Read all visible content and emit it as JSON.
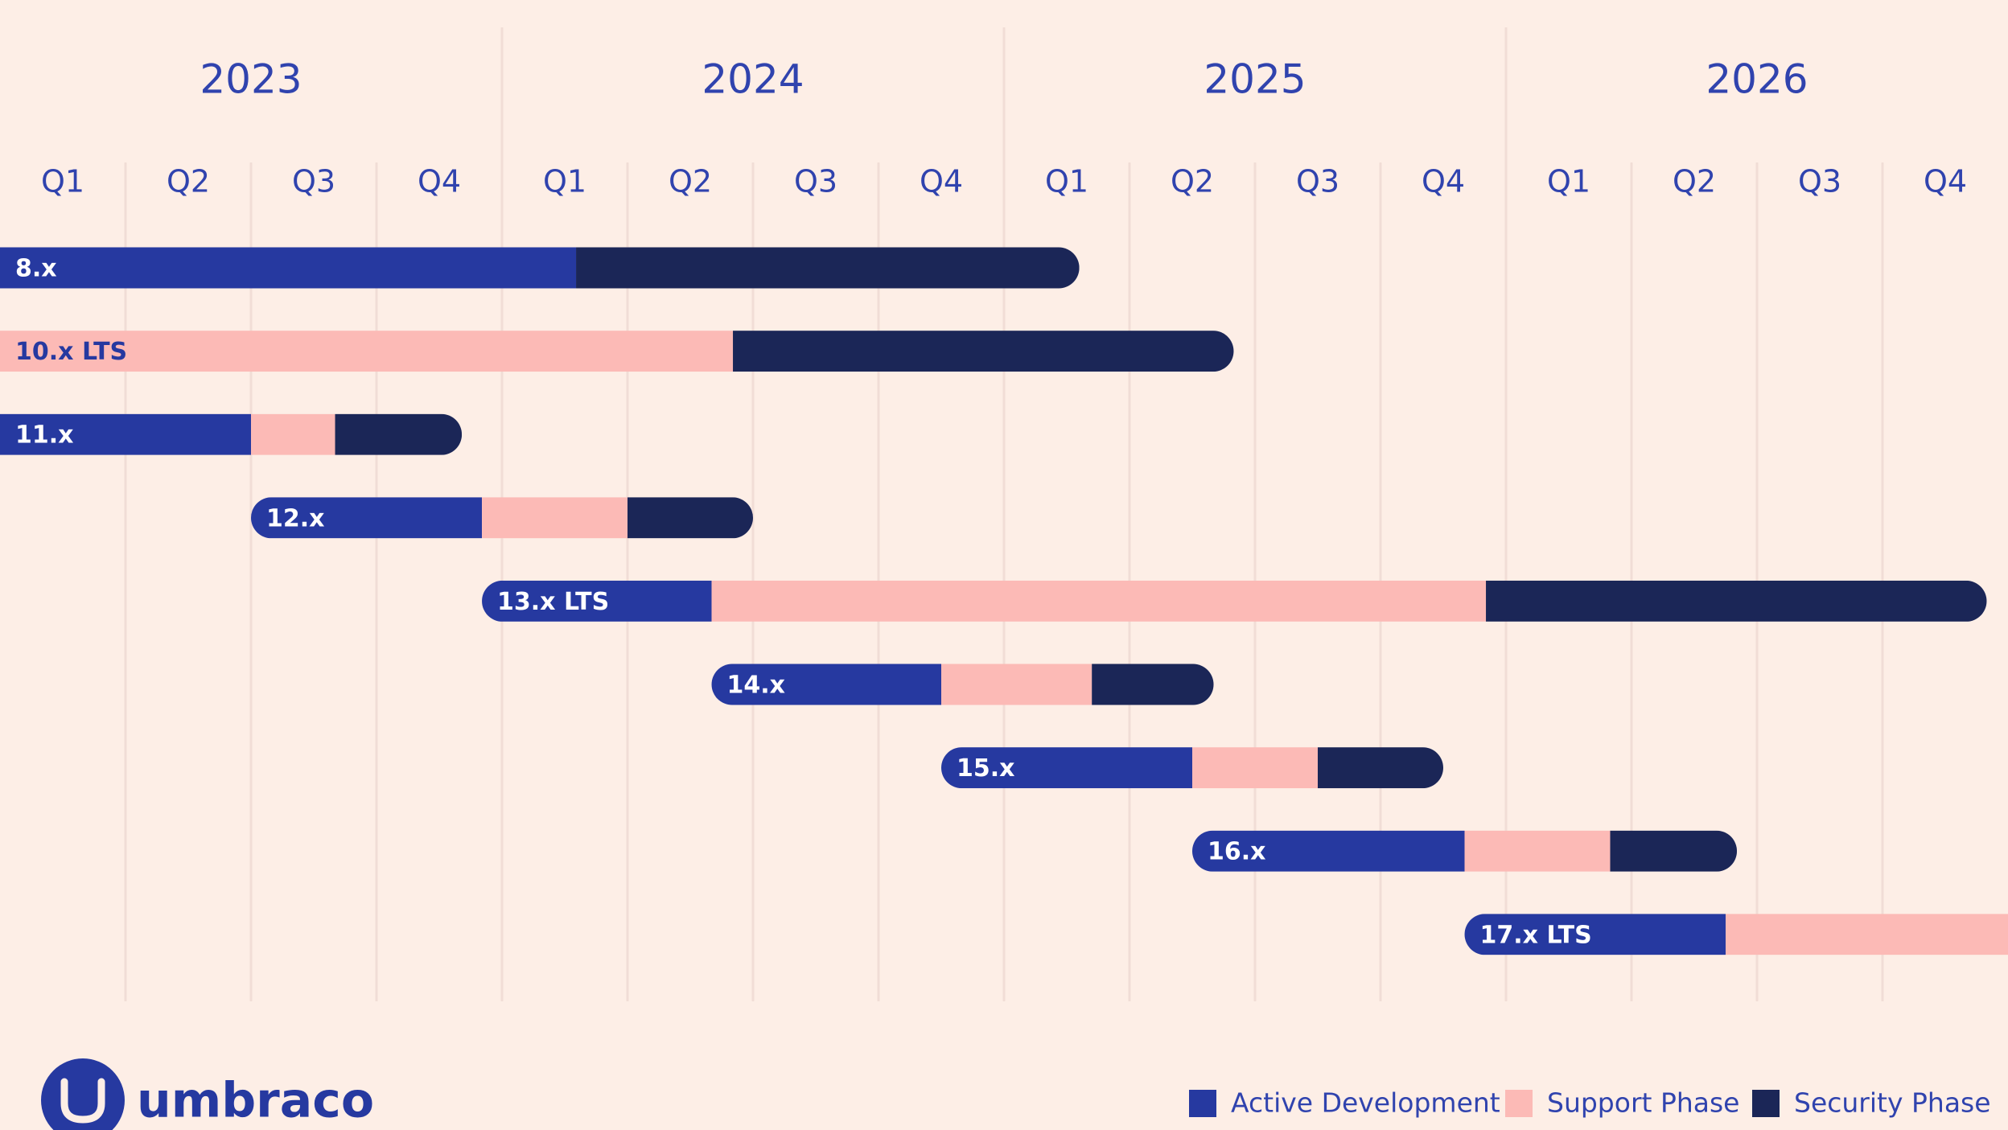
{
  "chart_data": {
    "type": "gantt",
    "year_ticks": [
      {
        "value": 2,
        "label": "2023"
      },
      {
        "value": 6,
        "label": "2024"
      },
      {
        "value": 10,
        "label": "2025"
      },
      {
        "value": 14,
        "label": "2026"
      }
    ],
    "xticks": [
      {
        "value": 0.5,
        "label": "Q1"
      },
      {
        "value": 1.5,
        "label": "Q2"
      },
      {
        "value": 2.5,
        "label": "Q3"
      },
      {
        "value": 3.5,
        "label": "Q4"
      },
      {
        "value": 4.5,
        "label": "Q1"
      },
      {
        "value": 5.5,
        "label": "Q2"
      },
      {
        "value": 6.5,
        "label": "Q3"
      },
      {
        "value": 7.5,
        "label": "Q4"
      },
      {
        "value": 8.5,
        "label": "Q1"
      },
      {
        "value": 9.5,
        "label": "Q2"
      },
      {
        "value": 10.5,
        "label": "Q3"
      },
      {
        "value": 11.5,
        "label": "Q4"
      },
      {
        "value": 12.5,
        "label": "Q1"
      },
      {
        "value": 13.5,
        "label": "Q2"
      },
      {
        "value": 14.5,
        "label": "Q3"
      },
      {
        "value": 15.5,
        "label": "Q4"
      }
    ],
    "xgrid": [
      1,
      2,
      3,
      4,
      5,
      6,
      7,
      8,
      9,
      10,
      11,
      12,
      13,
      14,
      15
    ],
    "xlim": [
      0,
      16
    ],
    "categories": [
      "8.x",
      "10.x LTS",
      "11.x",
      "12.x",
      "13.x LTS",
      "14.x",
      "15.x",
      "16.x",
      "17.x LTS"
    ],
    "series": [
      {
        "name": "Active Development",
        "color": "#2639a0",
        "values": [
          [
            0,
            4.59
          ],
          null,
          [
            0,
            2.0
          ],
          [
            2.0,
            3.84
          ],
          [
            3.84,
            5.67
          ],
          [
            5.67,
            7.5
          ],
          [
            7.5,
            9.5
          ],
          [
            9.5,
            11.67
          ],
          [
            11.67,
            13.75
          ]
        ]
      },
      {
        "name": "Support Phase",
        "color": "#fcbab6",
        "values": [
          null,
          [
            0,
            5.84
          ],
          [
            2.0,
            2.67
          ],
          [
            3.84,
            5.0
          ],
          [
            5.67,
            11.84
          ],
          [
            7.5,
            8.7
          ],
          [
            9.5,
            10.5
          ],
          [
            11.67,
            12.83
          ],
          [
            13.75,
            16
          ]
        ]
      },
      {
        "name": "Security Phase",
        "color": "#1b2657",
        "values": [
          [
            4.59,
            8.6
          ],
          [
            5.84,
            9.83
          ],
          [
            2.67,
            3.68
          ],
          [
            5.0,
            6.0
          ],
          [
            11.84,
            15.83
          ],
          [
            8.7,
            9.67
          ],
          [
            10.5,
            11.5
          ],
          [
            12.83,
            13.84
          ],
          null
        ]
      }
    ]
  },
  "brand": "umbraco"
}
